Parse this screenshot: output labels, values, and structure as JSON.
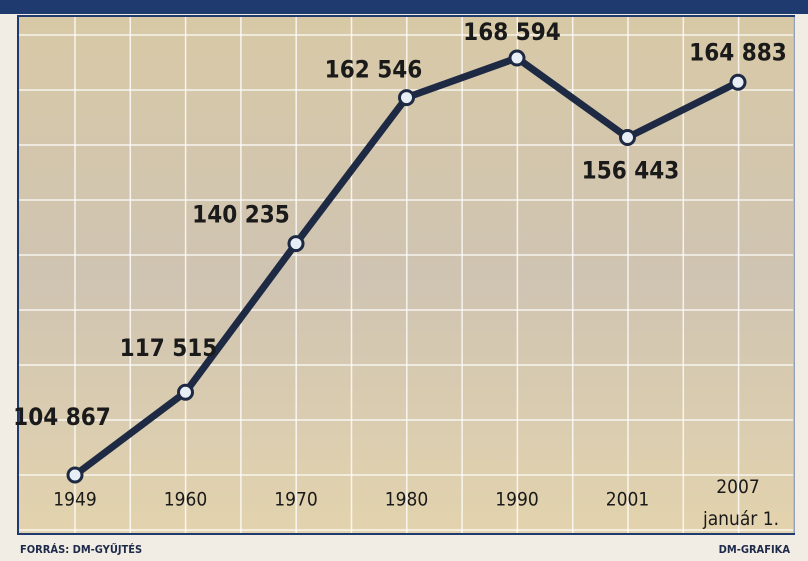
{
  "chart_data": {
    "type": "line",
    "categories": [
      "1949",
      "1960",
      "1970",
      "1980",
      "1990",
      "2001",
      "2007 január 1."
    ],
    "series": [
      {
        "color": "#1e2a44",
        "values": [
          104867,
          117515,
          140235,
          162546,
          168594,
          156443,
          164883
        ],
        "value_labels": [
          "104 867",
          "117 515",
          "140 235",
          "162 546",
          "168 594",
          "156 443",
          "164 883"
        ]
      }
    ],
    "source": "FORRÁS: DM-GYŰJTÉS",
    "credit": "DM-GRAFIKA"
  }
}
